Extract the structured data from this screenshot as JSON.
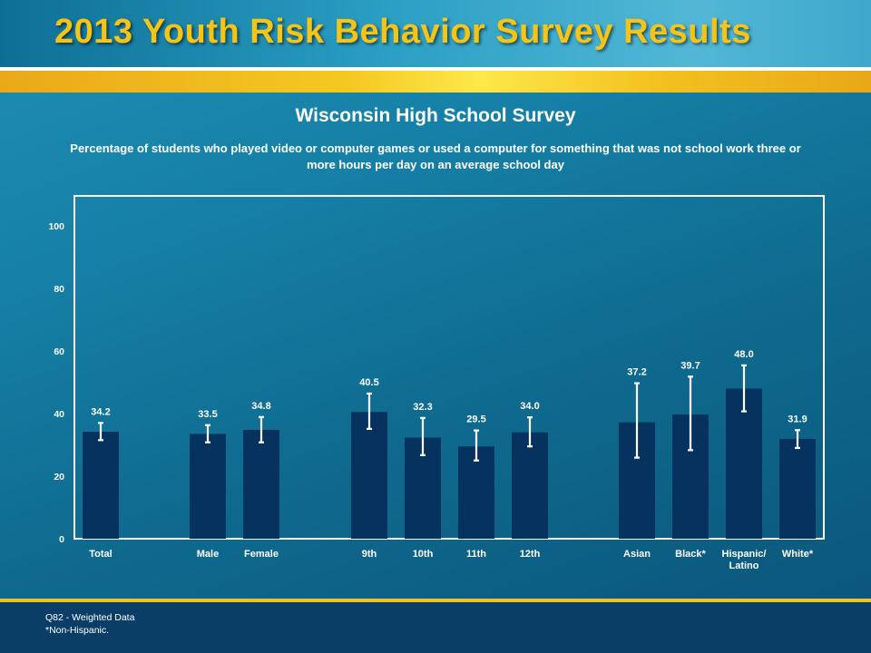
{
  "header": {
    "title": "2013 Youth Risk Behavior Survey Results"
  },
  "footer": {
    "note1": "Q82 - Weighted Data",
    "note2": "*Non-Hispanic."
  },
  "colors": {
    "bar": "#05325e",
    "title": "#f5c417",
    "error_bar": "#ffffff"
  },
  "chart_data": {
    "type": "bar",
    "title": "Wisconsin High School Survey",
    "subtitle": "Percentage of students who played video or computer games or used a computer for something that was not school work three or more hours per day on an average school day",
    "ylim": [
      0,
      100
    ],
    "yticks": [
      0,
      20,
      40,
      60,
      80,
      100
    ],
    "categories": [
      "Total",
      "Male",
      "Female",
      "9th",
      "10th",
      "11th",
      "12th",
      "Asian",
      "Black*",
      "Hispanic/ Latino",
      "White*"
    ],
    "values": [
      34.2,
      33.5,
      34.8,
      40.5,
      32.3,
      29.5,
      34.0,
      37.2,
      39.7,
      48.0,
      31.9
    ],
    "value_labels": [
      "34.2",
      "33.5",
      "34.8",
      "40.5",
      "32.3",
      "29.5",
      "34.0",
      "37.2",
      "39.7",
      "48.0",
      "31.9"
    ],
    "ci_low": [
      31.5,
      30.8,
      30.8,
      35.1,
      26.7,
      25.0,
      29.5,
      25.9,
      28.3,
      40.7,
      29.0
    ],
    "ci_high": [
      37.0,
      36.3,
      38.9,
      46.4,
      38.6,
      34.6,
      38.8,
      49.7,
      51.8,
      55.4,
      34.7
    ],
    "grid": false
  }
}
